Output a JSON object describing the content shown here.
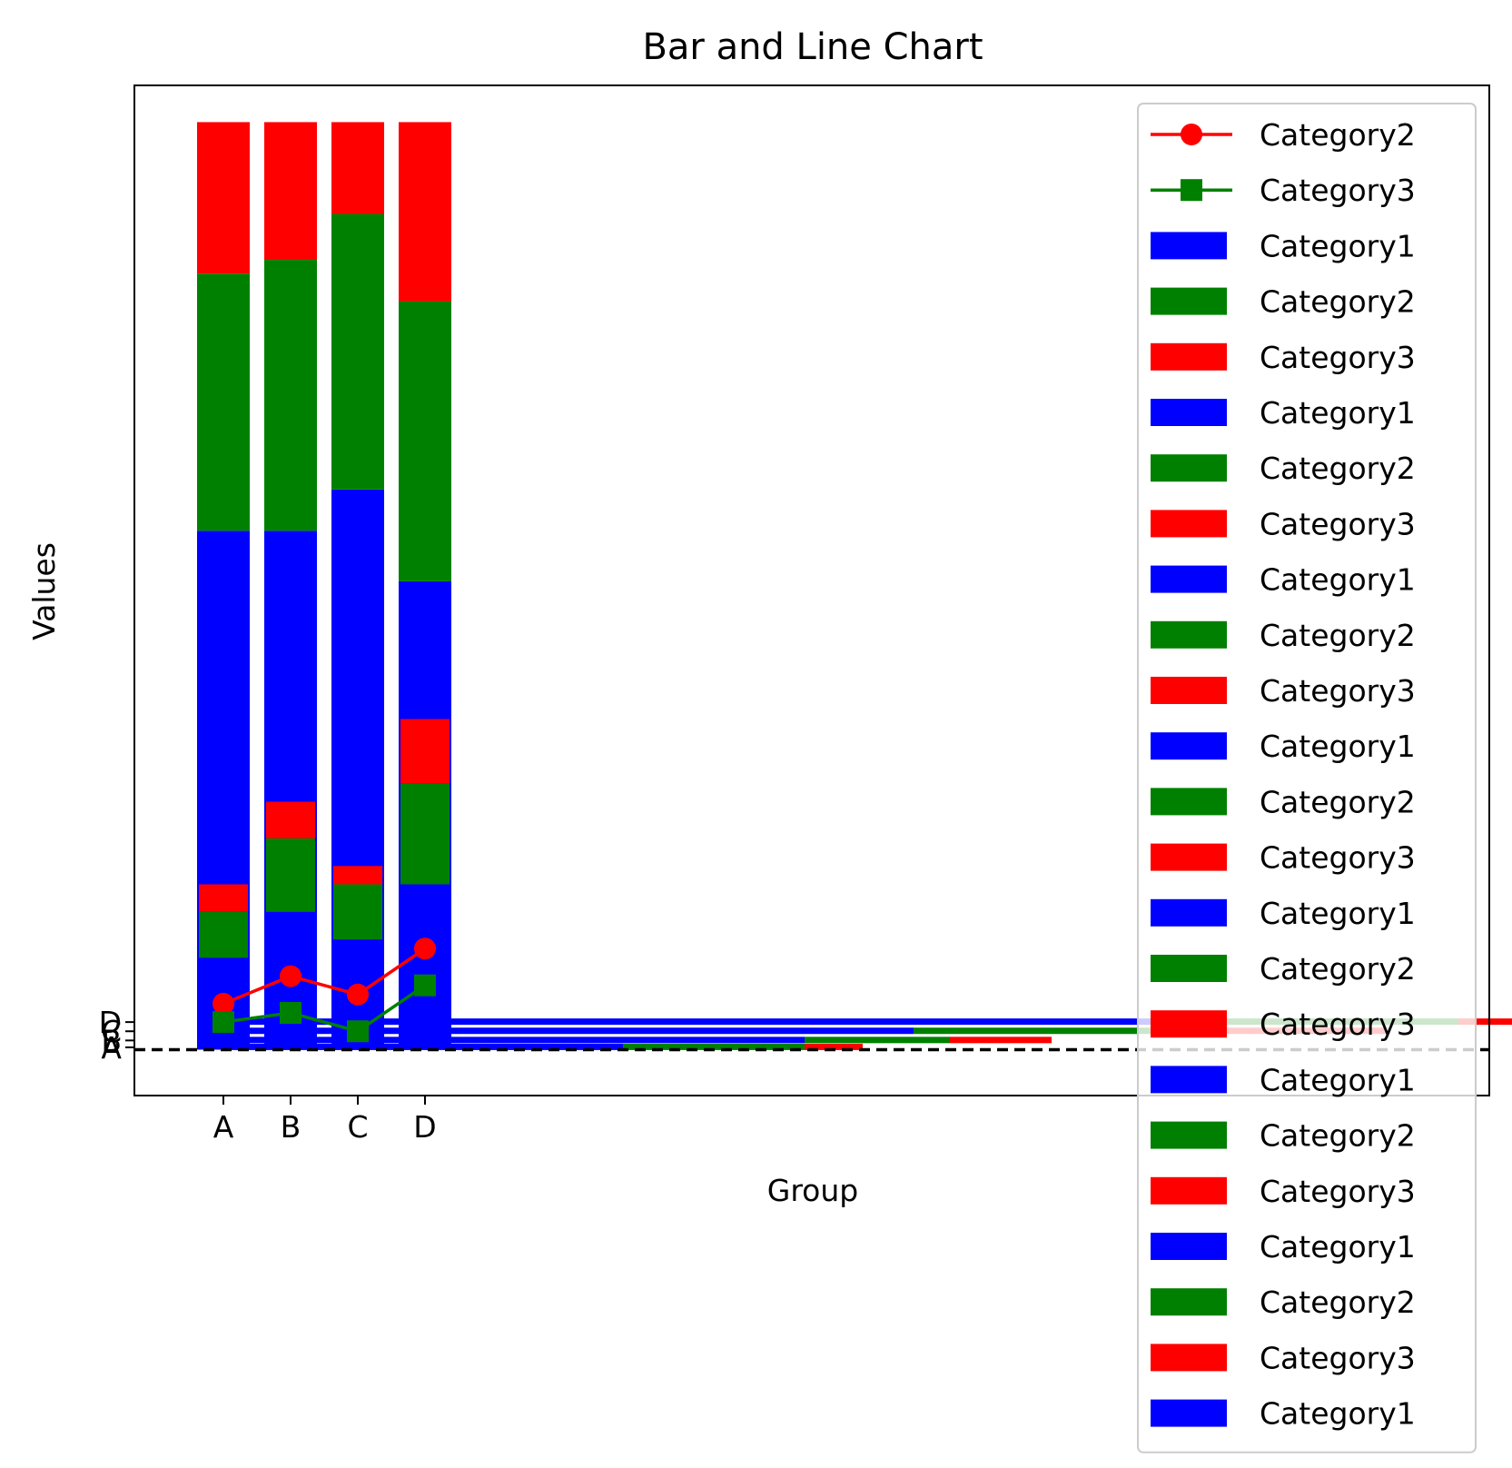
{
  "chart_data": {
    "type": "bar",
    "title": "Bar and Line Chart",
    "xlabel": "Group",
    "ylabel": "Values",
    "categories": [
      "A",
      "B",
      "C",
      "D"
    ],
    "ylim": [
      -1.0,
      21.0
    ],
    "grid": false,
    "legend": {
      "placement": "right",
      "entries": [
        {
          "label": "Category2",
          "kind": "line",
          "color": "#ff0000",
          "marker": "circle"
        },
        {
          "label": "Category3",
          "kind": "line",
          "color": "#008000",
          "marker": "square"
        },
        {
          "label": "Category1",
          "kind": "patch",
          "color": "#0000ff"
        },
        {
          "label": "Category2",
          "kind": "patch",
          "color": "#008000"
        },
        {
          "label": "Category3",
          "kind": "patch",
          "color": "#ff0000"
        },
        {
          "label": "Category1",
          "kind": "patch",
          "color": "#0000ff"
        },
        {
          "label": "Category2",
          "kind": "patch",
          "color": "#008000"
        },
        {
          "label": "Category3",
          "kind": "patch",
          "color": "#ff0000"
        },
        {
          "label": "Category1",
          "kind": "patch",
          "color": "#0000ff"
        },
        {
          "label": "Category2",
          "kind": "patch",
          "color": "#008000"
        },
        {
          "label": "Category3",
          "kind": "patch",
          "color": "#ff0000"
        },
        {
          "label": "Category1",
          "kind": "patch",
          "color": "#0000ff"
        },
        {
          "label": "Category2",
          "kind": "patch",
          "color": "#008000"
        },
        {
          "label": "Category3",
          "kind": "patch",
          "color": "#ff0000"
        },
        {
          "label": "Category1",
          "kind": "patch",
          "color": "#0000ff"
        },
        {
          "label": "Category2",
          "kind": "patch",
          "color": "#008000"
        },
        {
          "label": "Category3",
          "kind": "patch",
          "color": "#ff0000"
        },
        {
          "label": "Category1",
          "kind": "patch",
          "color": "#0000ff"
        },
        {
          "label": "Category2",
          "kind": "patch",
          "color": "#008000"
        },
        {
          "label": "Category3",
          "kind": "patch",
          "color": "#ff0000"
        },
        {
          "label": "Category1",
          "kind": "patch",
          "color": "#0000ff"
        },
        {
          "label": "Category2",
          "kind": "patch",
          "color": "#008000"
        },
        {
          "label": "Category3",
          "kind": "patch",
          "color": "#ff0000"
        },
        {
          "label": "Category1",
          "kind": "patch",
          "color": "#0000ff"
        }
      ]
    },
    "stacked_bars_wide": {
      "series": [
        {
          "name": "Category1",
          "color": "#0000ff",
          "values": [
            11.3,
            11.3,
            12.2,
            10.2
          ]
        },
        {
          "name": "Category2",
          "color": "#008000",
          "values": [
            5.6,
            5.9,
            6.0,
            6.1
          ]
        },
        {
          "name": "Category3",
          "color": "#ff0000",
          "values": [
            3.3,
            3.0,
            2.0,
            3.9
          ]
        }
      ]
    },
    "stacked_bars_narrow": {
      "series": [
        {
          "name": "Category1",
          "color": "#0000ff",
          "values": [
            2.0,
            3.0,
            2.4,
            3.6
          ]
        },
        {
          "name": "Category2",
          "color": "#008000",
          "values": [
            1.0,
            1.6,
            1.2,
            2.2
          ]
        },
        {
          "name": "Category3",
          "color": "#ff0000",
          "values": [
            0.6,
            0.8,
            0.4,
            1.4
          ]
        }
      ]
    },
    "horizontal_bars": {
      "y_positions": [
        0.05,
        0.2,
        0.4,
        0.6
      ],
      "series": [
        {
          "name": "Category1",
          "color": "#0000ff",
          "values": [
            5.5,
            8.0,
            9.5,
            13.0
          ]
        },
        {
          "name": "Category2",
          "color": "#008000",
          "values": [
            2.5,
            2.0,
            4.0,
            4.0
          ]
        },
        {
          "name": "Category3",
          "color": "#ff0000",
          "values": [
            0.8,
            1.4,
            2.5,
            4.0
          ]
        }
      ]
    },
    "lines": [
      {
        "name": "Category2",
        "color": "#ff0000",
        "marker": "circle",
        "values": [
          1.0,
          1.6,
          1.2,
          2.2
        ]
      },
      {
        "name": "Category3",
        "color": "#008000",
        "marker": "square",
        "values": [
          0.6,
          0.8,
          0.4,
          1.4
        ]
      }
    ],
    "reference_line": {
      "y": 0,
      "style": "dashed",
      "color": "#000000"
    },
    "secondary_yticks": [
      "A",
      "B",
      "C",
      "D"
    ]
  }
}
